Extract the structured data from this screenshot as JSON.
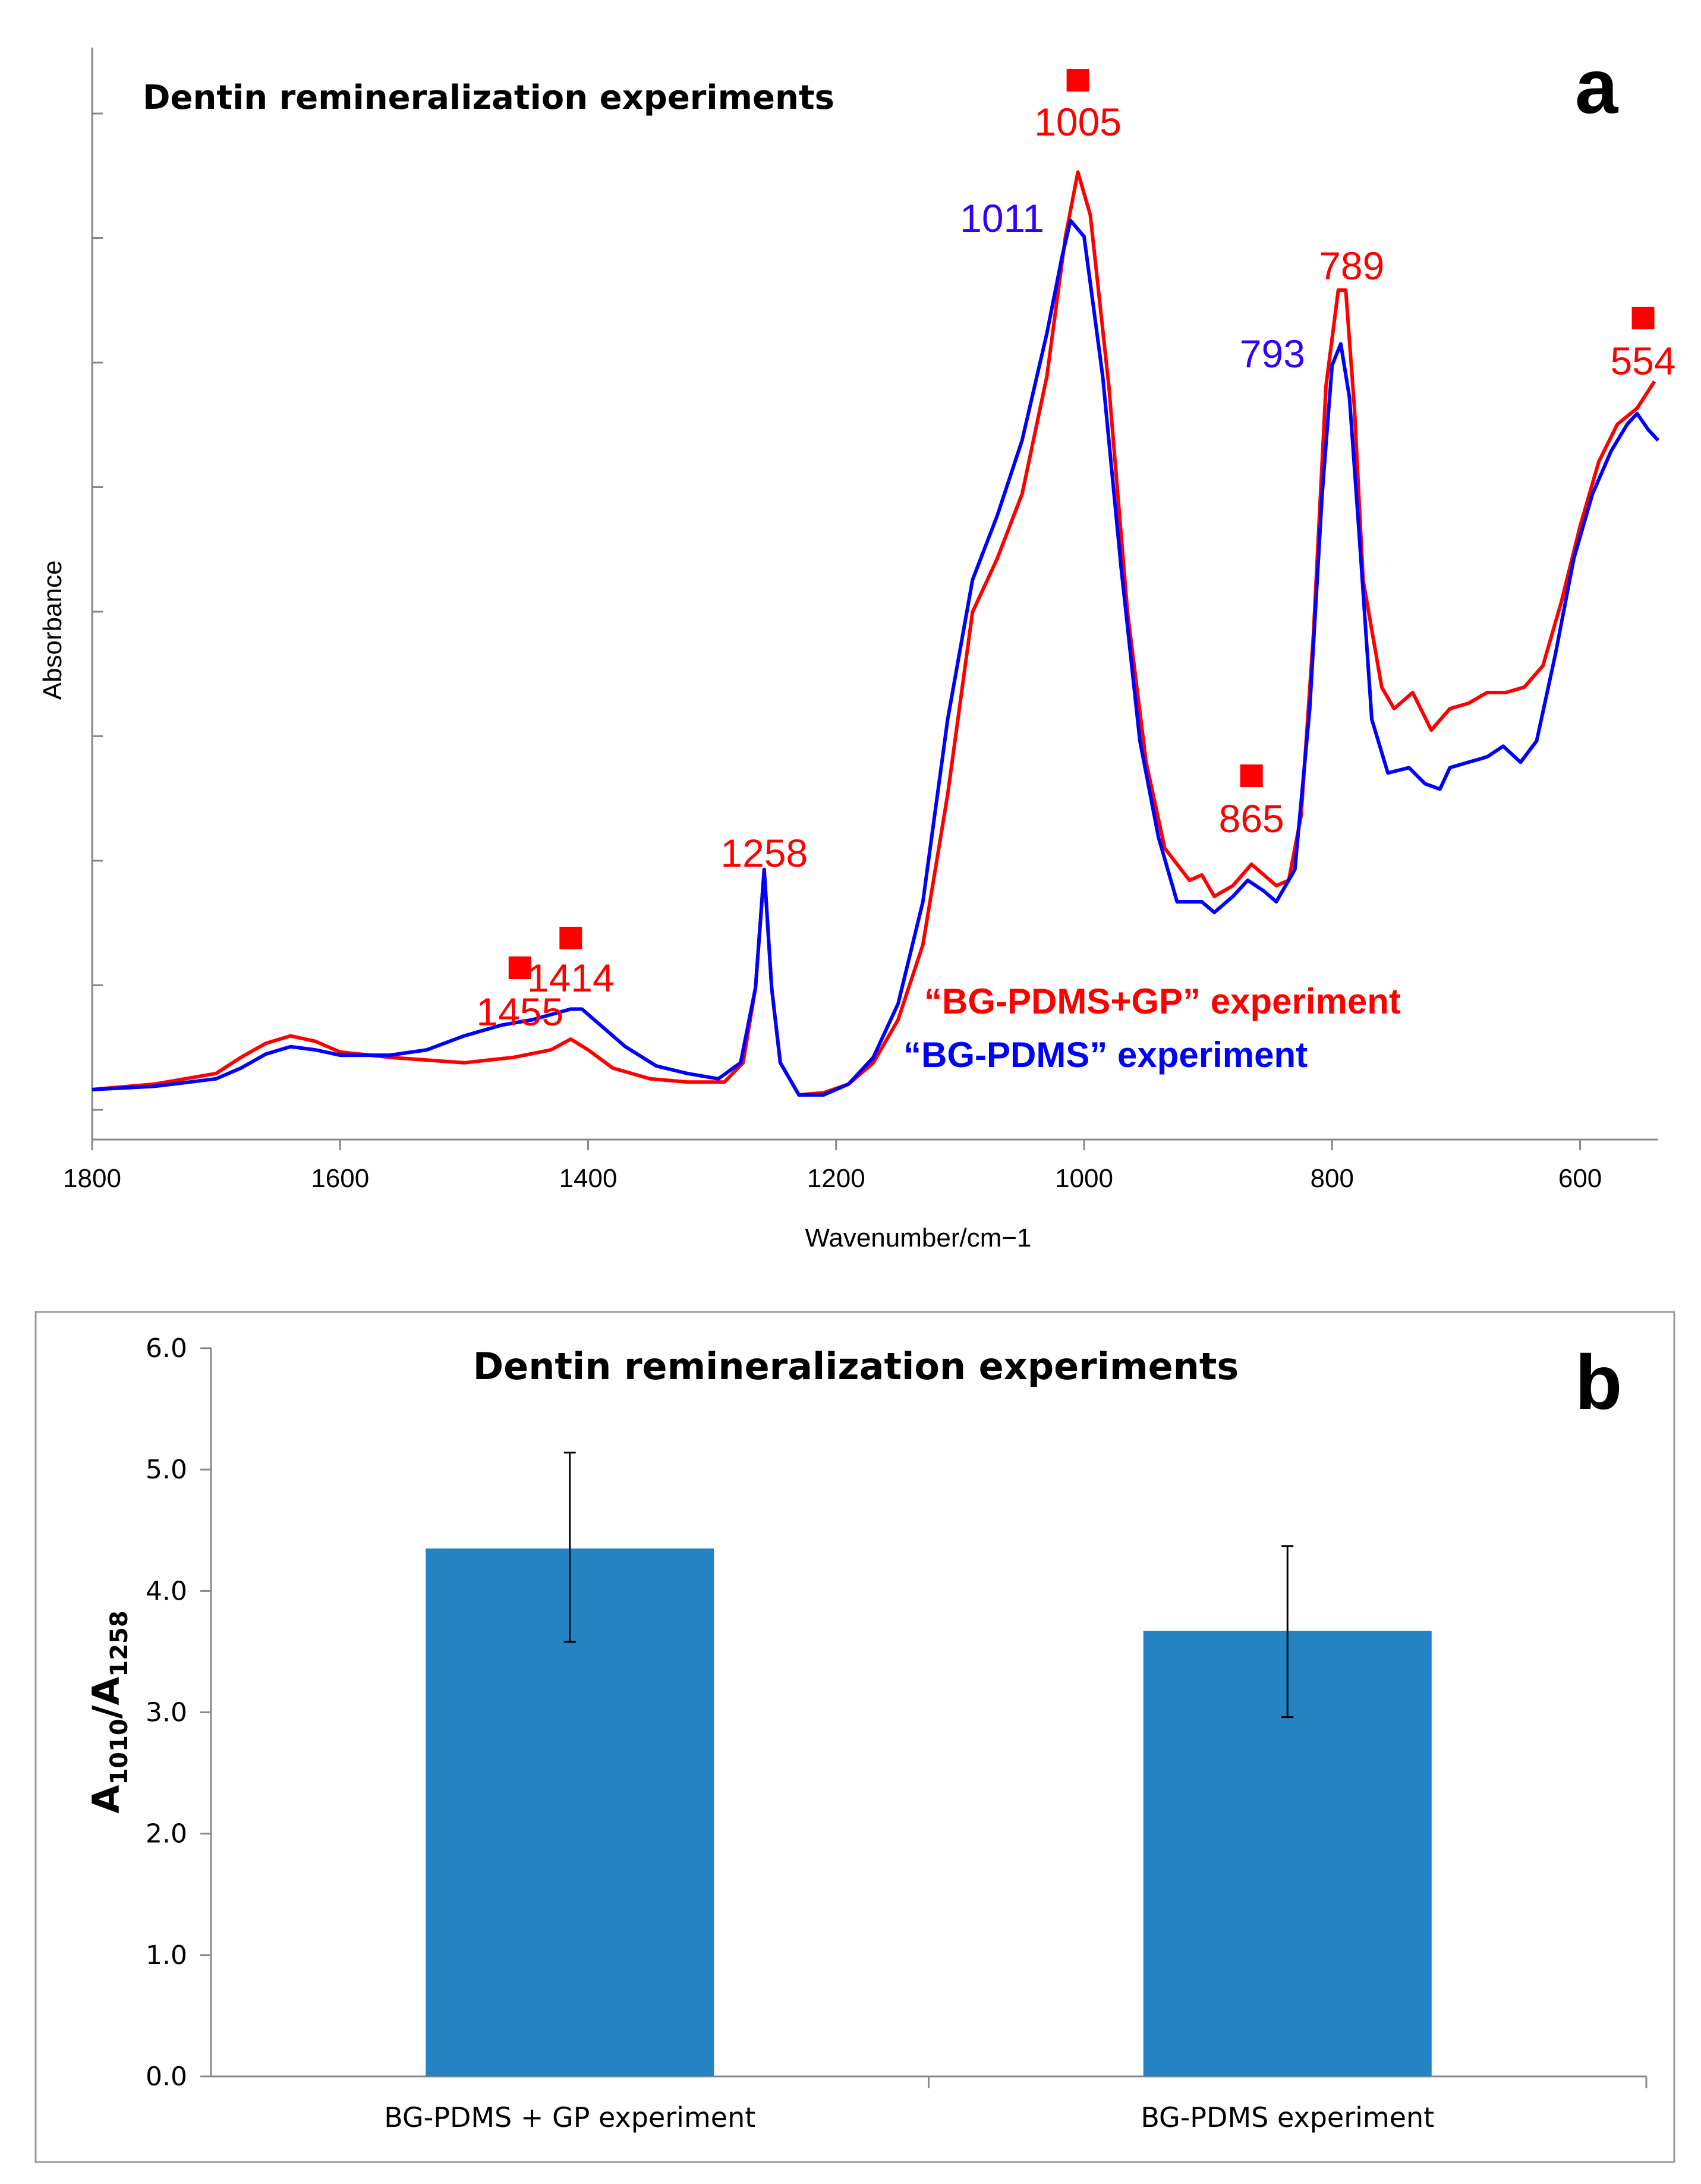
{
  "chart_data": [
    {
      "panel": "a",
      "type": "line",
      "title": "Dentin remineralization experiments",
      "xlabel": "Wavenumber/cm−1",
      "ylabel": "Absorbance",
      "xlim": [
        1800,
        537
      ],
      "ylim": [
        0,
        1
      ],
      "xticks": [
        "1800",
        "1600",
        "1400",
        "1200",
        "1000",
        "800",
        "600"
      ],
      "grid": false,
      "legend": [
        "“BG-PDMS+GP” experiment",
        "“BG-PDMS” experiment"
      ],
      "series": [
        {
          "name": "“BG-PDMS+GP” experiment",
          "color": "#ff0000",
          "points": [
            [
              1800,
              0.025
            ],
            [
              1750,
              0.03
            ],
            [
              1700,
              0.04
            ],
            [
              1680,
              0.055
            ],
            [
              1660,
              0.068
            ],
            [
              1640,
              0.075
            ],
            [
              1620,
              0.07
            ],
            [
              1600,
              0.06
            ],
            [
              1560,
              0.055
            ],
            [
              1500,
              0.05
            ],
            [
              1460,
              0.055
            ],
            [
              1430,
              0.062
            ],
            [
              1414,
              0.072
            ],
            [
              1400,
              0.062
            ],
            [
              1380,
              0.045
            ],
            [
              1350,
              0.035
            ],
            [
              1320,
              0.032
            ],
            [
              1290,
              0.032
            ],
            [
              1275,
              0.05
            ],
            [
              1265,
              0.12
            ],
            [
              1258,
              0.23
            ],
            [
              1252,
              0.12
            ],
            [
              1245,
              0.05
            ],
            [
              1230,
              0.02
            ],
            [
              1210,
              0.022
            ],
            [
              1190,
              0.03
            ],
            [
              1170,
              0.05
            ],
            [
              1150,
              0.09
            ],
            [
              1130,
              0.16
            ],
            [
              1110,
              0.3
            ],
            [
              1090,
              0.47
            ],
            [
              1070,
              0.52
            ],
            [
              1050,
              0.58
            ],
            [
              1030,
              0.69
            ],
            [
              1015,
              0.82
            ],
            [
              1005,
              0.88
            ],
            [
              995,
              0.84
            ],
            [
              980,
              0.68
            ],
            [
              965,
              0.47
            ],
            [
              950,
              0.33
            ],
            [
              935,
              0.25
            ],
            [
              915,
              0.22
            ],
            [
              905,
              0.225
            ],
            [
              895,
              0.205
            ],
            [
              880,
              0.215
            ],
            [
              865,
              0.235
            ],
            [
              855,
              0.225
            ],
            [
              845,
              0.215
            ],
            [
              835,
              0.22
            ],
            [
              825,
              0.28
            ],
            [
              815,
              0.45
            ],
            [
              805,
              0.68
            ],
            [
              795,
              0.77
            ],
            [
              789,
              0.77
            ],
            [
              782,
              0.66
            ],
            [
              775,
              0.5
            ],
            [
              760,
              0.4
            ],
            [
              750,
              0.38
            ],
            [
              735,
              0.395
            ],
            [
              720,
              0.36
            ],
            [
              705,
              0.38
            ],
            [
              690,
              0.385
            ],
            [
              675,
              0.395
            ],
            [
              660,
              0.395
            ],
            [
              645,
              0.4
            ],
            [
              630,
              0.42
            ],
            [
              615,
              0.48
            ],
            [
              600,
              0.55
            ],
            [
              585,
              0.61
            ],
            [
              570,
              0.645
            ],
            [
              554,
              0.66
            ],
            [
              540,
              0.685
            ]
          ]
        },
        {
          "name": "“BG-PDMS” experiment",
          "color": "#0000ff",
          "points": [
            [
              1800,
              0.025
            ],
            [
              1750,
              0.028
            ],
            [
              1700,
              0.035
            ],
            [
              1680,
              0.045
            ],
            [
              1660,
              0.058
            ],
            [
              1640,
              0.065
            ],
            [
              1620,
              0.062
            ],
            [
              1600,
              0.057
            ],
            [
              1560,
              0.057
            ],
            [
              1530,
              0.062
            ],
            [
              1500,
              0.075
            ],
            [
              1470,
              0.085
            ],
            [
              1445,
              0.09
            ],
            [
              1414,
              0.1
            ],
            [
              1405,
              0.1
            ],
            [
              1390,
              0.085
            ],
            [
              1370,
              0.065
            ],
            [
              1345,
              0.047
            ],
            [
              1320,
              0.04
            ],
            [
              1295,
              0.035
            ],
            [
              1277,
              0.05
            ],
            [
              1265,
              0.12
            ],
            [
              1258,
              0.23
            ],
            [
              1252,
              0.12
            ],
            [
              1245,
              0.05
            ],
            [
              1230,
              0.02
            ],
            [
              1210,
              0.02
            ],
            [
              1190,
              0.03
            ],
            [
              1170,
              0.055
            ],
            [
              1150,
              0.105
            ],
            [
              1130,
              0.2
            ],
            [
              1110,
              0.37
            ],
            [
              1090,
              0.5
            ],
            [
              1070,
              0.56
            ],
            [
              1050,
              0.63
            ],
            [
              1030,
              0.73
            ],
            [
              1018,
              0.8
            ],
            [
              1011,
              0.835
            ],
            [
              1000,
              0.82
            ],
            [
              985,
              0.69
            ],
            [
              970,
              0.51
            ],
            [
              955,
              0.35
            ],
            [
              940,
              0.26
            ],
            [
              925,
              0.2
            ],
            [
              905,
              0.2
            ],
            [
              895,
              0.19
            ],
            [
              880,
              0.205
            ],
            [
              868,
              0.22
            ],
            [
              855,
              0.21
            ],
            [
              845,
              0.2
            ],
            [
              830,
              0.23
            ],
            [
              818,
              0.38
            ],
            [
              808,
              0.58
            ],
            [
              800,
              0.7
            ],
            [
              793,
              0.72
            ],
            [
              786,
              0.67
            ],
            [
              778,
              0.54
            ],
            [
              768,
              0.37
            ],
            [
              755,
              0.32
            ],
            [
              738,
              0.325
            ],
            [
              725,
              0.31
            ],
            [
              713,
              0.305
            ],
            [
              705,
              0.325
            ],
            [
              690,
              0.33
            ],
            [
              675,
              0.335
            ],
            [
              662,
              0.345
            ],
            [
              648,
              0.33
            ],
            [
              635,
              0.35
            ],
            [
              620,
              0.43
            ],
            [
              605,
              0.52
            ],
            [
              590,
              0.58
            ],
            [
              575,
              0.62
            ],
            [
              562,
              0.645
            ],
            [
              554,
              0.655
            ],
            [
              545,
              0.64
            ],
            [
              537,
              0.63
            ]
          ]
        }
      ],
      "annotations": [
        {
          "label": "1005",
          "wn": 1005,
          "color": "#ff0000",
          "marker": true
        },
        {
          "label": "1011",
          "wn": 1011,
          "color": "#3300ff",
          "marker": false
        },
        {
          "label": "789",
          "wn": 789,
          "color": "#ff0000",
          "marker": false
        },
        {
          "label": "793",
          "wn": 793,
          "color": "#3300ff",
          "marker": false
        },
        {
          "label": "554",
          "wn": 554,
          "color": "#ff0000",
          "marker": true
        },
        {
          "label": "865",
          "wn": 865,
          "color": "#ff0000",
          "marker": true
        },
        {
          "label": "1258",
          "wn": 1258,
          "color": "#ff0000",
          "marker": false
        },
        {
          "label": "1414",
          "wn": 1414,
          "color": "#ff0000",
          "marker": true
        },
        {
          "label": "1455",
          "wn": 1455,
          "color": "#ff0000",
          "marker": true
        }
      ]
    },
    {
      "panel": "b",
      "type": "bar",
      "title": "Dentin remineralization experiments",
      "xlabel": "",
      "ylabel_main": "A",
      "ylabel_sub1": "1010",
      "ylabel_sep": "/A",
      "ylabel_sub2": "1258",
      "ylim": [
        0,
        6
      ],
      "yticks": [
        "0.0",
        "1.0",
        "2.0",
        "3.0",
        "4.0",
        "5.0",
        "6.0"
      ],
      "categories": [
        "BG-PDMS + GP experiment",
        "BG-PDMS experiment"
      ],
      "values": [
        4.35,
        3.67
      ],
      "error_low": [
        3.58,
        2.96
      ],
      "error_high": [
        5.14,
        4.37
      ],
      "color": "#2583c3"
    }
  ],
  "panel_labels": {
    "a": "a",
    "b": "b"
  }
}
